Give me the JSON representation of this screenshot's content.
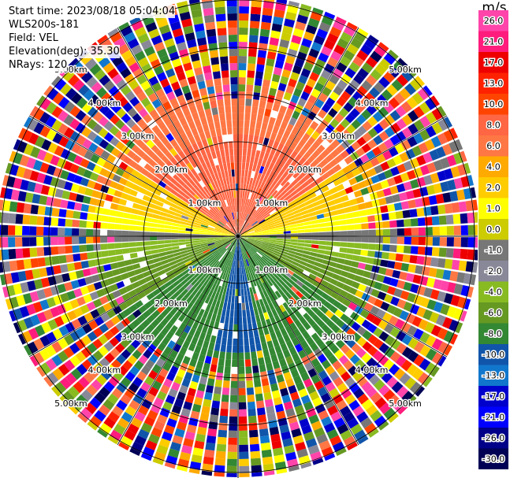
{
  "header": {
    "start_time": "Start time: 2023/08/18 05:04:04",
    "instrument": "WLS200s-181",
    "field": "Field: VEL",
    "elevation": "Elevation(deg): 35.30",
    "nrays": "NRays: 120"
  },
  "chart_data": {
    "type": "ppi",
    "field": "VEL",
    "elevation_deg": 35.3,
    "nrays": 120,
    "range_rings_km": [
      1.0,
      2.0,
      3.0,
      4.0,
      5.0
    ],
    "ring_labels": [
      "1.00km",
      "2.00km",
      "3.00km",
      "4.00km",
      "5.00km"
    ],
    "colorbar": {
      "unit": "m/s",
      "ticks": [
        "26.0",
        "21.0",
        "17.0",
        "13.0",
        "10.0",
        "8.0",
        "6.0",
        "4.0",
        "2.0",
        "1.0",
        "0.0",
        "-1.0",
        "-2.0",
        "-4.0",
        "-6.0",
        "-8.0",
        "-10.0",
        "-13.0",
        "-17.0",
        "-21.0",
        "-26.0",
        "-30.0"
      ],
      "colors": [
        "#ff44aa",
        "#ff1c7c",
        "#ee0000",
        "#ff2200",
        "#ff4400",
        "#ff6644",
        "#ff7744",
        "#ffaa00",
        "#ffcc00",
        "#ffff00",
        "#cccc00",
        "#777777",
        "#888899",
        "#88bb22",
        "#669922",
        "#338833",
        "#1155aa",
        "#1177cc",
        "#0000cc",
        "#0000ff",
        "#000088",
        "#000055"
      ]
    },
    "pattern_description": {
      "inner_region_km": 3.0,
      "positive_sector": "north",
      "negative_sector": "south"
    }
  }
}
